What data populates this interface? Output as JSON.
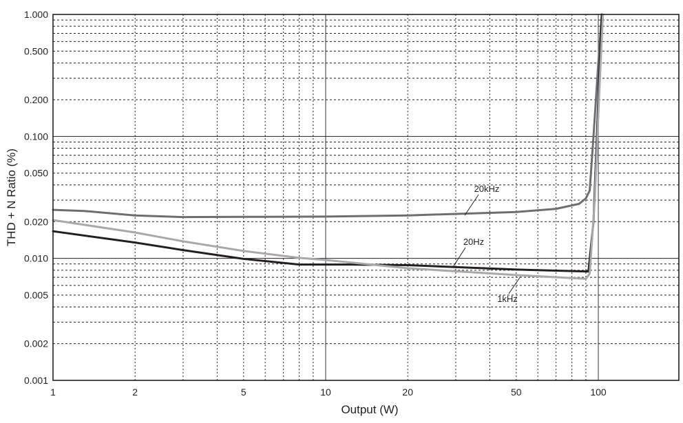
{
  "chart_data": {
    "type": "line",
    "title": "",
    "xlabel": "Output (W)",
    "ylabel": "THD + N Ratio (%)",
    "xscale": "log",
    "yscale": "log",
    "xlim": [
      1,
      300
    ],
    "ylim": [
      0.001,
      1.0
    ],
    "grid": true,
    "legend": "inline annotations",
    "x_ticks": [
      1,
      2,
      5,
      10,
      20,
      50,
      100
    ],
    "x_tick_labels": [
      "1",
      "2",
      "5",
      "10",
      "20",
      "50",
      "100"
    ],
    "y_ticks": [
      1.0,
      0.5,
      0.2,
      0.1,
      0.05,
      0.02,
      0.01,
      0.005,
      0.002,
      0.001
    ],
    "y_tick_labels": [
      "1.000",
      "0.500",
      "0.200",
      "0.100",
      "0.050",
      "0.020",
      "0.010",
      "0.005",
      "0.002",
      "0.001"
    ],
    "series": [
      {
        "name": "20kHz",
        "color": "#6d6e71",
        "x": [
          1,
          1.3,
          2,
          3,
          5,
          10,
          20,
          50,
          70,
          85,
          90,
          93,
          96,
          100,
          103
        ],
        "y": [
          0.025,
          0.0245,
          0.0225,
          0.0218,
          0.0219,
          0.022,
          0.0225,
          0.024,
          0.0255,
          0.028,
          0.031,
          0.036,
          0.1,
          0.4,
          1.0
        ]
      },
      {
        "name": "20Hz",
        "color": "#231f20",
        "x": [
          1,
          2,
          3,
          5,
          8,
          12,
          20,
          50,
          92,
          96,
          100,
          103
        ],
        "y": [
          0.0167,
          0.0135,
          0.0117,
          0.0099,
          0.0089,
          0.0089,
          0.0088,
          0.0081,
          0.0078,
          0.02,
          0.2,
          1.0
        ]
      },
      {
        "name": "1kHz",
        "color": "#a7a9ac",
        "x": [
          1,
          2,
          3,
          5,
          8,
          10,
          20,
          50,
          90,
          93,
          97,
          101,
          104
        ],
        "y": [
          0.0206,
          0.0163,
          0.0138,
          0.0115,
          0.0101,
          0.0097,
          0.0083,
          0.0073,
          0.0068,
          0.0075,
          0.03,
          0.25,
          1.0
        ]
      }
    ],
    "annotations": [
      {
        "text": "20kHz",
        "x": 40,
        "y": 0.04
      },
      {
        "text": "20Hz",
        "x": 30,
        "y": 0.0135
      },
      {
        "text": "1kHz",
        "x": 70,
        "y": 0.0044
      }
    ]
  }
}
